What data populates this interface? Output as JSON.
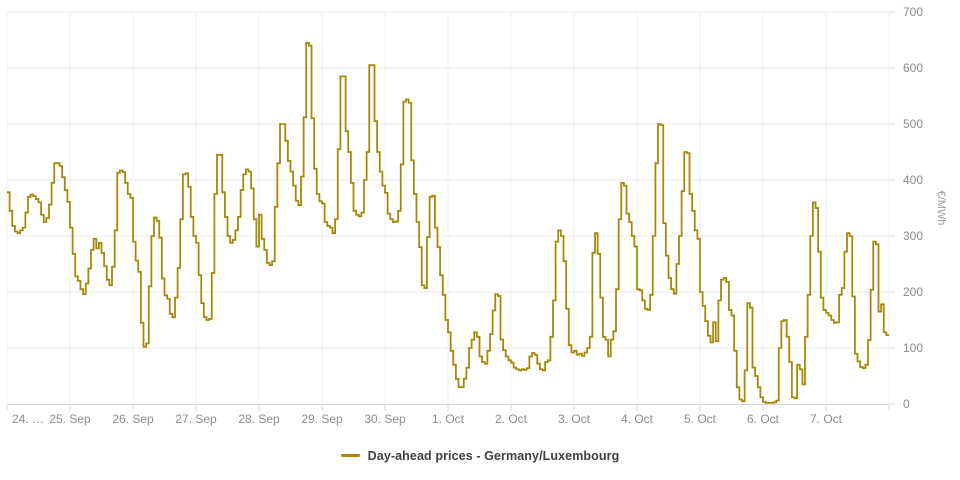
{
  "chart_data": {
    "type": "line",
    "step": true,
    "title": "",
    "series_name": "Day-ahead prices - Germany/Luxembourg",
    "line_color": "#A5890B",
    "ylabel": "€/MWh",
    "ylim": [
      0,
      700
    ],
    "yticks": [
      0,
      100,
      200,
      300,
      400,
      500,
      600,
      700
    ],
    "grid": true,
    "legend_position": "bottom-center",
    "days": [
      {
        "label": "24. …",
        "values": [
          378,
          345,
          318,
          308,
          305,
          310,
          315,
          342,
          370,
          374,
          371,
          366,
          360,
          338,
          325,
          332,
          356,
          395,
          430,
          430,
          425,
          405,
          382,
          361
        ]
      },
      {
        "label": "25. Sep",
        "values": [
          315,
          268,
          228,
          220,
          205,
          196,
          215,
          242,
          275,
          295,
          278,
          288,
          270,
          246,
          222,
          212,
          245,
          310,
          413,
          417,
          414,
          395,
          375,
          368
        ]
      },
      {
        "label": "26. Sep",
        "values": [
          290,
          256,
          236,
          145,
          102,
          108,
          210,
          300,
          333,
          327,
          297,
          224,
          194,
          188,
          161,
          155,
          190,
          243,
          330,
          410,
          412,
          388,
          334,
          300
        ]
      },
      {
        "label": "27. Sep",
        "values": [
          288,
          230,
          180,
          155,
          150,
          152,
          234,
          375,
          445,
          445,
          378,
          334,
          300,
          288,
          293,
          310,
          334,
          382,
          410,
          419,
          415,
          385,
          330,
          281
        ]
      },
      {
        "label": "28. Sep",
        "values": [
          338,
          295,
          275,
          252,
          248,
          255,
          352,
          430,
          500,
          500,
          470,
          434,
          415,
          390,
          363,
          355,
          406,
          512,
          645,
          640,
          510,
          420,
          375,
          362
        ]
      },
      {
        "label": "29. Sep",
        "values": [
          358,
          325,
          318,
          315,
          305,
          330,
          455,
          585,
          585,
          487,
          450,
          395,
          345,
          338,
          335,
          342,
          400,
          450,
          605,
          605,
          505,
          450,
          415,
          390
        ]
      },
      {
        "label": "30. Sep",
        "values": [
          377,
          340,
          330,
          325,
          326,
          345,
          428,
          540,
          544,
          538,
          435,
          375,
          325,
          280,
          212,
          207,
          298,
          370,
          372,
          315,
          280,
          230,
          195,
          150
        ]
      },
      {
        "label": "1. Oct",
        "values": [
          128,
          95,
          70,
          45,
          30,
          30,
          45,
          65,
          100,
          115,
          128,
          120,
          85,
          75,
          72,
          95,
          125,
          167,
          196,
          193,
          115,
          96,
          85,
          78
        ]
      },
      {
        "label": "2. Oct",
        "values": [
          74,
          65,
          62,
          60,
          62,
          61,
          64,
          85,
          91,
          88,
          72,
          62,
          60,
          75,
          78,
          120,
          185,
          290,
          310,
          300,
          255,
          170,
          105,
          92
        ]
      },
      {
        "label": "3. Oct",
        "values": [
          95,
          88,
          90,
          86,
          92,
          100,
          120,
          270,
          305,
          268,
          190,
          120,
          115,
          85,
          115,
          130,
          205,
          330,
          395,
          390,
          340,
          325,
          300,
          281
        ]
      },
      {
        "label": "4. Oct",
        "values": [
          205,
          203,
          185,
          170,
          168,
          195,
          300,
          430,
          500,
          498,
          323,
          265,
          225,
          205,
          197,
          250,
          300,
          380,
          450,
          448,
          375,
          345,
          310,
          295
        ]
      },
      {
        "label": "5. Oct",
        "values": [
          200,
          175,
          148,
          122,
          110,
          146,
          112,
          185,
          222,
          225,
          218,
          168,
          158,
          95,
          30,
          8,
          5,
          60,
          180,
          172,
          65,
          50,
          30,
          12
        ]
      },
      {
        "label": "6. Oct",
        "values": [
          4,
          2,
          2,
          2,
          3,
          6,
          100,
          148,
          150,
          120,
          75,
          12,
          10,
          70,
          62,
          35,
          120,
          195,
          300,
          360,
          350,
          272,
          190,
          168
        ]
      },
      {
        "label": "7. Oct",
        "values": [
          163,
          158,
          150,
          145,
          146,
          195,
          207,
          272,
          305,
          300,
          192,
          90,
          76,
          66,
          64,
          70,
          114,
          204,
          290,
          285,
          165,
          178,
          128,
          123
        ]
      }
    ]
  },
  "colors": {
    "grid_vertical": "#f0f0f0",
    "grid_horizontal": "#ebebeb",
    "axis_line": "#d9d9d9",
    "tick": "#d4d4d4",
    "tick_label": "#8c8c8c",
    "axis_title": "#999999",
    "background": "#ffffff"
  }
}
